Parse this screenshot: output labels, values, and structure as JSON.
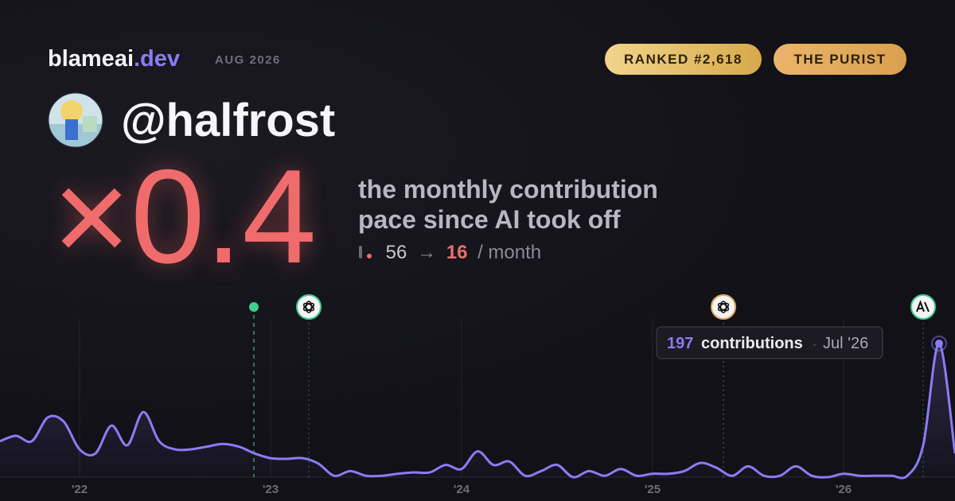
{
  "header": {
    "brand": "blameai",
    "brand_suffix": ".dev",
    "period": "AUG 2026",
    "badges": [
      "RANKED #2,618",
      "THE PURIST"
    ]
  },
  "profile": {
    "handle": "@halfrost"
  },
  "headline": {
    "multiplier": "×0.4",
    "description": [
      "the monthly contribution",
      "pace since AI took off"
    ],
    "before": 56,
    "arrow": "→",
    "after": 16,
    "unit": "/ month"
  },
  "chart_data": {
    "type": "line",
    "color": "#8b7cf6",
    "categories": [
      null,
      null,
      null,
      null,
      null,
      "'22",
      null,
      null,
      null,
      null,
      null,
      null,
      null,
      null,
      null,
      null,
      null,
      "'23",
      null,
      null,
      null,
      null,
      null,
      null,
      null,
      null,
      null,
      null,
      null,
      "'24",
      null,
      null,
      null,
      null,
      null,
      null,
      null,
      null,
      null,
      null,
      null,
      "'25",
      null,
      null,
      null,
      null,
      null,
      null,
      null,
      null,
      null,
      null,
      null,
      "'26",
      null,
      null,
      null,
      null,
      null,
      null,
      null
    ],
    "values": [
      53,
      61,
      53,
      88,
      82,
      41,
      35,
      76,
      47,
      96,
      53,
      41,
      41,
      45,
      49,
      45,
      35,
      28,
      27,
      28,
      20,
      2,
      9,
      2,
      2,
      5,
      7,
      7,
      18,
      12,
      38,
      18,
      23,
      2,
      9,
      18,
      0,
      9,
      2,
      12,
      2,
      5,
      5,
      9,
      21,
      14,
      2,
      16,
      2,
      2,
      16,
      2,
      0,
      5,
      2,
      2,
      2,
      2,
      47,
      197,
      35
    ],
    "tooltip": {
      "unit": "contributions",
      "separator": "·",
      "date": "Jul '26"
    }
  }
}
